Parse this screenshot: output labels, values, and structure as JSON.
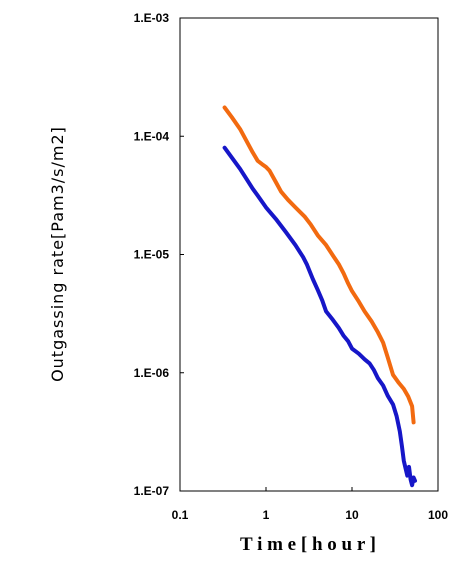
{
  "chart_data": {
    "type": "line",
    "title": "",
    "xlabel": "T i m e [ h o u r ]",
    "ylabel": "Outgassing rate[Pam3/s/m2]",
    "x_scale": "log",
    "y_scale": "log",
    "xlim": [
      0.1,
      100
    ],
    "ylim": [
      1e-07,
      0.001
    ],
    "x_ticks": [
      {
        "value": 0.1,
        "label": "0.1"
      },
      {
        "value": 1,
        "label": "1"
      },
      {
        "value": 10,
        "label": "10"
      },
      {
        "value": 100,
        "label": "100"
      }
    ],
    "y_ticks": [
      {
        "value": 1e-07,
        "label": "1.E-07"
      },
      {
        "value": 1e-06,
        "label": "1.E-06"
      },
      {
        "value": 1e-05,
        "label": "1.E-05"
      },
      {
        "value": 0.0001,
        "label": "1.E-04"
      },
      {
        "value": 0.001,
        "label": "1.E-03"
      }
    ],
    "grid": false,
    "legend": "none",
    "series": [
      {
        "color": "#f26a10",
        "points": [
          [
            0.33,
            0.000175
          ],
          [
            0.4,
            0.000145
          ],
          [
            0.5,
            0.000115
          ],
          [
            0.6,
            9e-05
          ],
          [
            0.7,
            7.3e-05
          ],
          [
            0.8,
            6.2e-05
          ],
          [
            0.9,
            5.8e-05
          ],
          [
            1.0,
            5.5e-05
          ],
          [
            1.1,
            5.1e-05
          ],
          [
            1.3,
            4.1e-05
          ],
          [
            1.5,
            3.4e-05
          ],
          [
            1.8,
            2.9e-05
          ],
          [
            2.2,
            2.5e-05
          ],
          [
            2.8,
            2.1e-05
          ],
          [
            3.3,
            1.8e-05
          ],
          [
            4.0,
            1.45e-05
          ],
          [
            5.0,
            1.2e-05
          ],
          [
            6.0,
            9.8e-06
          ],
          [
            7.0,
            8.3e-06
          ],
          [
            8.0,
            6.9e-06
          ],
          [
            9.0,
            5.7e-06
          ],
          [
            10,
            4.9e-06
          ],
          [
            12,
            4e-06
          ],
          [
            14,
            3.3e-06
          ],
          [
            17,
            2.7e-06
          ],
          [
            20,
            2.2e-06
          ],
          [
            23,
            1.8e-06
          ],
          [
            26,
            1.35e-06
          ],
          [
            30,
            9.6e-07
          ],
          [
            35,
            8.2e-07
          ],
          [
            40,
            7.3e-07
          ],
          [
            45,
            6.3e-07
          ],
          [
            50,
            5.2e-07
          ],
          [
            52,
            3.8e-07
          ]
        ]
      },
      {
        "color": "#1616c8",
        "points": [
          [
            0.33,
            8e-05
          ],
          [
            0.4,
            6.6e-05
          ],
          [
            0.5,
            5.3e-05
          ],
          [
            0.6,
            4.3e-05
          ],
          [
            0.7,
            3.6e-05
          ],
          [
            0.8,
            3.15e-05
          ],
          [
            1.0,
            2.5e-05
          ],
          [
            1.3,
            2e-05
          ],
          [
            1.7,
            1.55e-05
          ],
          [
            2.2,
            1.2e-05
          ],
          [
            2.7,
            9.5e-06
          ],
          [
            3.0,
            8.2e-06
          ],
          [
            3.5,
            6.2e-06
          ],
          [
            4.0,
            5e-06
          ],
          [
            4.5,
            4.1e-06
          ],
          [
            5.0,
            3.3e-06
          ],
          [
            6.0,
            2.8e-06
          ],
          [
            7.0,
            2.4e-06
          ],
          [
            8.0,
            2.05e-06
          ],
          [
            9.0,
            1.85e-06
          ],
          [
            10,
            1.6e-06
          ],
          [
            12,
            1.45e-06
          ],
          [
            14,
            1.3e-06
          ],
          [
            16,
            1.2e-06
          ],
          [
            18,
            1.05e-06
          ],
          [
            20,
            9e-07
          ],
          [
            23,
            7.8e-07
          ],
          [
            26,
            6.4e-07
          ],
          [
            30,
            5.4e-07
          ],
          [
            33,
            4.3e-07
          ],
          [
            36,
            3.2e-07
          ],
          [
            38,
            2.4e-07
          ],
          [
            40,
            1.8e-07
          ],
          [
            42,
            1.55e-07
          ],
          [
            44,
            1.35e-07
          ],
          [
            46,
            1.6e-07
          ],
          [
            48,
            1.25e-07
          ],
          [
            50,
            1.12e-07
          ],
          [
            52,
            1.3e-07
          ],
          [
            54,
            1.22e-07
          ]
        ]
      }
    ]
  }
}
